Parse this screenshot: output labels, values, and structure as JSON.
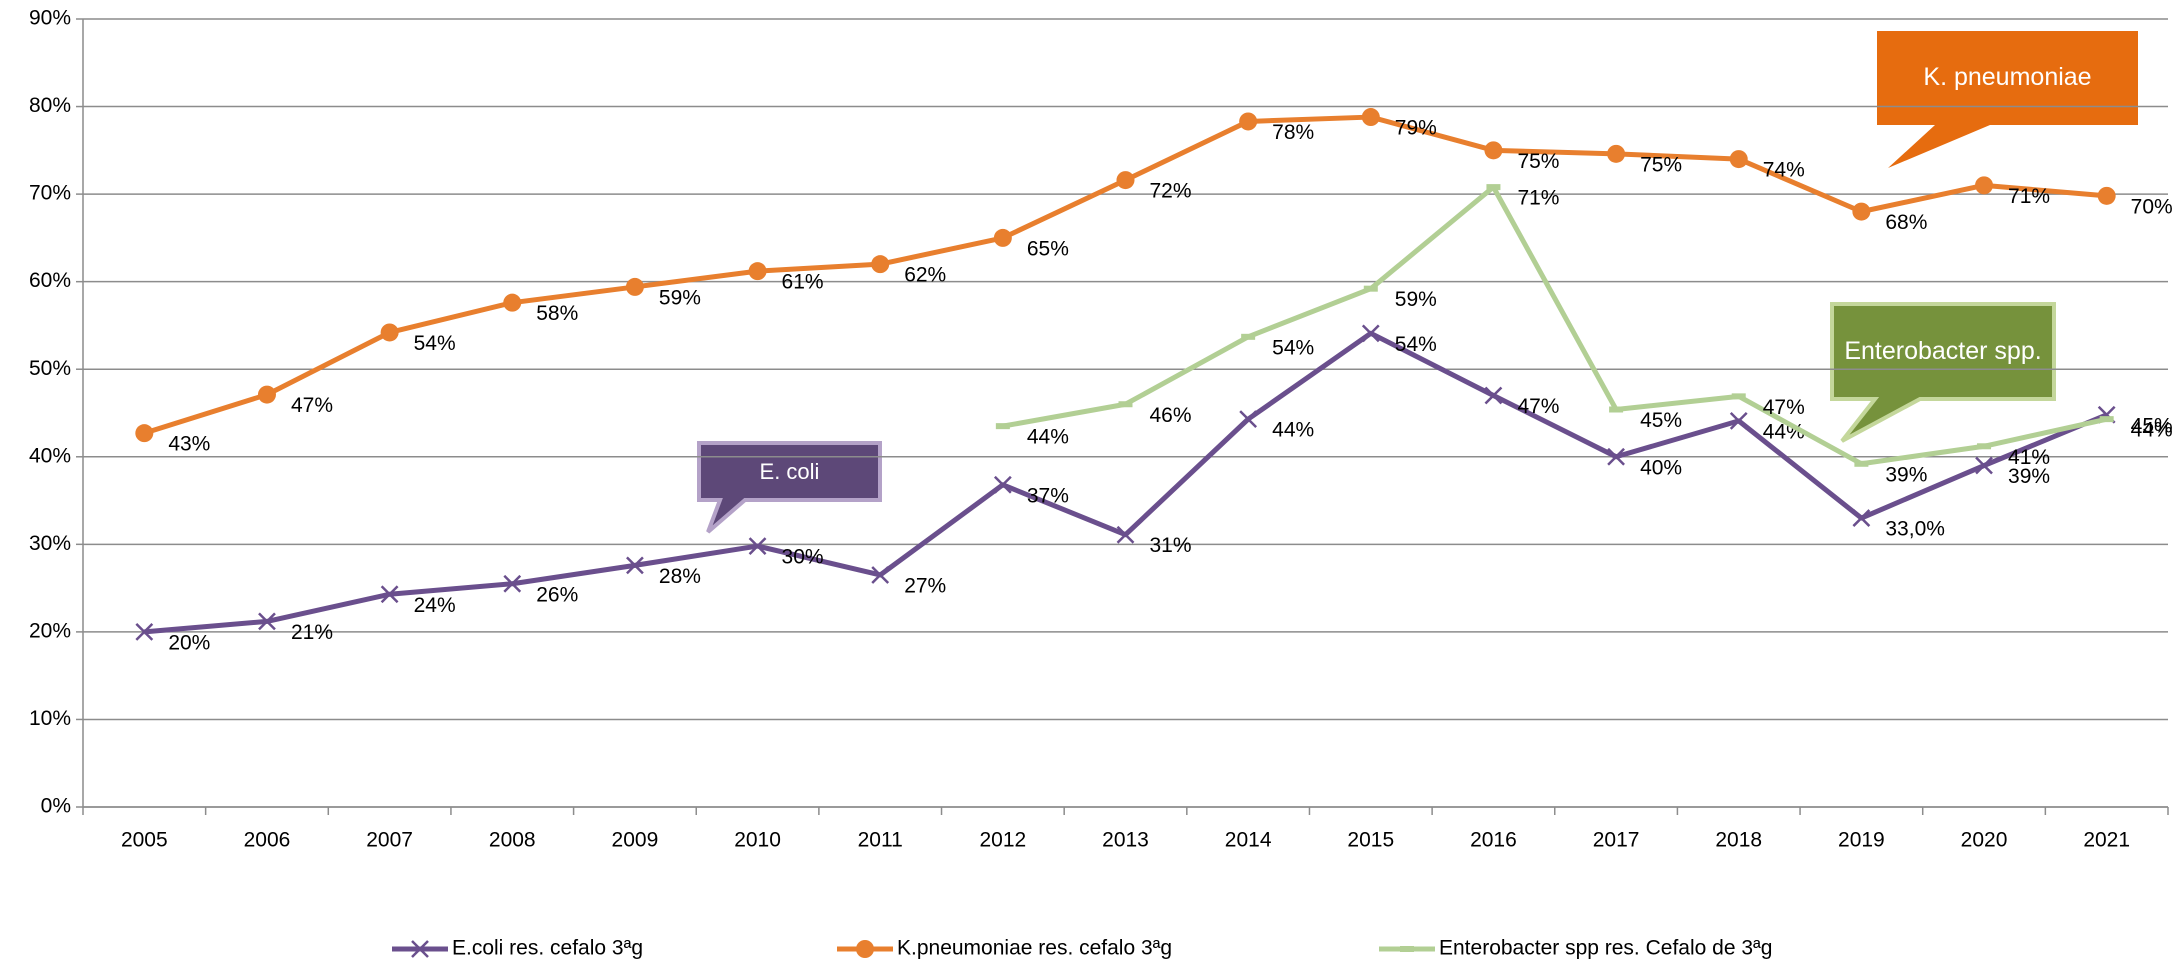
{
  "chart_data": {
    "type": "line",
    "categories": [
      "2005",
      "2006",
      "2007",
      "2008",
      "2009",
      "2010",
      "2011",
      "2012",
      "2013",
      "2014",
      "2015",
      "2016",
      "2017",
      "2018",
      "2019",
      "2020",
      "2021"
    ],
    "ylim": [
      0,
      90
    ],
    "yticks": [
      {
        "value": 0,
        "label": "0%"
      },
      {
        "value": 10,
        "label": "10%"
      },
      {
        "value": 20,
        "label": "20%"
      },
      {
        "value": 30,
        "label": "30%"
      },
      {
        "value": 40,
        "label": "40%"
      },
      {
        "value": 50,
        "label": "50%"
      },
      {
        "value": 60,
        "label": "60%"
      },
      {
        "value": 70,
        "label": "70%"
      },
      {
        "value": 80,
        "label": "80%"
      },
      {
        "value": 90,
        "label": "90%"
      }
    ],
    "grid": true,
    "legend": "bottom",
    "series": [
      {
        "name": "E.coli res. cefalo 3ªg",
        "color": "#6a4f8d",
        "marker": "x",
        "values": [
          20,
          21.2,
          24.3,
          25.5,
          27.6,
          29.8,
          26.5,
          36.8,
          31.1,
          44.3,
          54.1,
          47,
          40,
          44.1,
          33.0,
          39,
          44.8
        ],
        "value_labels": [
          "20%",
          "21%",
          "24%",
          "26%",
          "28%",
          "30%",
          "27%",
          "37%",
          "31%",
          "44%",
          "54%",
          "47%",
          "40%",
          "44%",
          "33,0%",
          "39%",
          "45%"
        ]
      },
      {
        "name": "K.pneumoniae res. cefalo 3ªg",
        "color": "#e87f2e",
        "marker": "circle",
        "values": [
          42.7,
          47.1,
          54.2,
          57.6,
          59.4,
          61.2,
          62,
          65,
          71.6,
          78.3,
          78.8,
          75,
          74.6,
          74,
          68,
          71,
          69.8
        ],
        "value_labels": [
          "43%",
          "47%",
          "54%",
          "58%",
          "59%",
          "61%",
          "62%",
          "65%",
          "72%",
          "78%",
          "79%",
          "75%",
          "75%",
          "74%",
          "68%",
          "71%",
          "70%"
        ]
      },
      {
        "name": "Enterobacter spp res. Cefalo de 3ªg",
        "color": "#b2cf94",
        "marker": "dash",
        "values": [
          null,
          null,
          null,
          null,
          null,
          null,
          null,
          43.5,
          46,
          53.7,
          59.2,
          70.8,
          45.4,
          46.9,
          39.2,
          41.2,
          44.3
        ],
        "value_labels": [
          null,
          null,
          null,
          null,
          null,
          null,
          null,
          "44%",
          "46%",
          "54%",
          "59%",
          "71%",
          "45%",
          "47%",
          "39%",
          "41%",
          "44%"
        ]
      }
    ],
    "annotations": [
      {
        "text": "K. pneumoniae",
        "color": "#e66c0f"
      },
      {
        "text": "Enterobacter spp.",
        "color": "#76923c"
      },
      {
        "text": "E. coli",
        "color": "#5d4878"
      }
    ]
  }
}
